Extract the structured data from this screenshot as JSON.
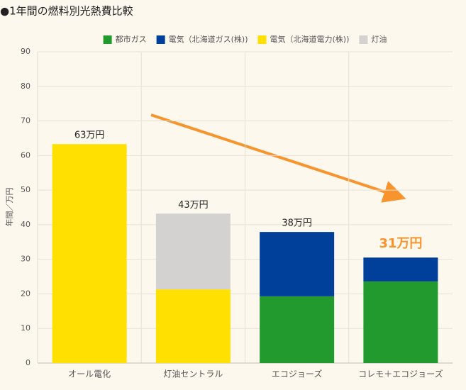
{
  "chart_data": {
    "type": "stacked_bar",
    "title": "●1年間の燃料別光熱費比較",
    "y_label": "年間／万円",
    "categories": [
      "オール電化",
      "灯油セントラル",
      "エコジョーズ",
      "コレモ＋エコジョーズ"
    ],
    "series": [
      {
        "name": "都市ガス",
        "color": "#229a2e",
        "values": [
          0,
          0,
          19.3,
          23.6
        ]
      },
      {
        "name": "電気（北海道ガス(株))",
        "color": "#00409a",
        "values": [
          0,
          0,
          18.6,
          6.9
        ]
      },
      {
        "name": "電気（北海道電力(株))",
        "color": "#ffe000",
        "values": [
          63.3,
          21.3,
          0,
          0
        ]
      },
      {
        "name": "灯油",
        "color": "#d3d2d0",
        "values": [
          0,
          21.9,
          0,
          0
        ]
      }
    ],
    "totals": [
      63.3,
      43.2,
      37.9,
      30.5
    ],
    "total_labels": [
      "63万円",
      "43万円",
      "38万円",
      "31万円"
    ],
    "ylim": [
      0,
      90
    ],
    "yticks": [
      0,
      10,
      20,
      30,
      40,
      50,
      60,
      70,
      80,
      90
    ],
    "grid": true
  }
}
